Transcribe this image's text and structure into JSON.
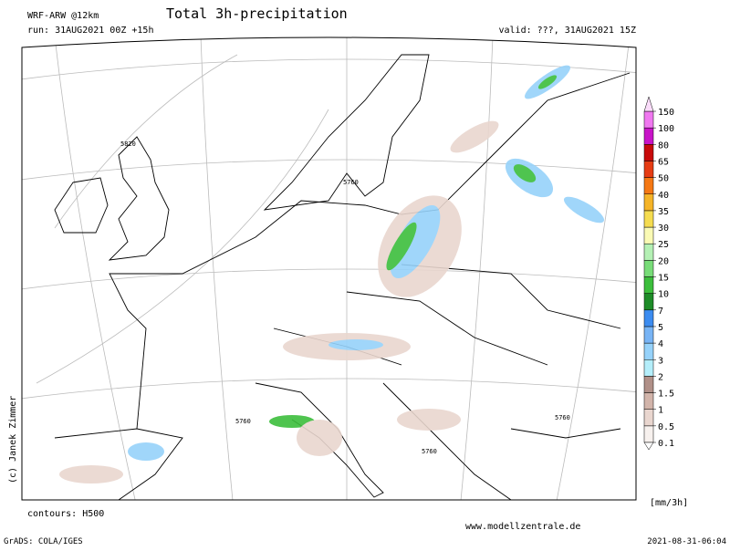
{
  "header": {
    "model": "WRF-ARW @12km",
    "title": "Total 3h-precipitation",
    "run": "run: 31AUG2021 00Z +15h",
    "valid": "valid: ???, 31AUG2021 15Z"
  },
  "map": {
    "contour_labels": [
      "5820",
      "5760",
      "5760",
      "5760",
      "5760"
    ],
    "copyright": "(c) Janek Zimmer"
  },
  "colorbar": {
    "levels": [
      0.1,
      0.5,
      1,
      1.5,
      2,
      3,
      4,
      5,
      7,
      10,
      15,
      20,
      25,
      30,
      35,
      40,
      50,
      65,
      80,
      100,
      150
    ],
    "colors": [
      "#f7f1ee",
      "#e9d6cf",
      "#d2b4aa",
      "#b09088",
      "#b4eefa",
      "#96d2fa",
      "#78b4f5",
      "#3c8cf0",
      "#1e8c28",
      "#3cbe3c",
      "#78dc78",
      "#b4f0b4",
      "#fafab4",
      "#f5dc50",
      "#f5b428",
      "#f57814",
      "#e63c14",
      "#c80a0a",
      "#c814c8",
      "#f078f0"
    ],
    "under_color": "#ffffff",
    "over_color": "#fadcfa",
    "unit": "[mm/3h]"
  },
  "footer": {
    "contours": "contours: H500",
    "website": "www.modellzentrale.de",
    "software": "GrADS: COLA/IGES",
    "timestamp": "2021-08-31-06:04"
  }
}
